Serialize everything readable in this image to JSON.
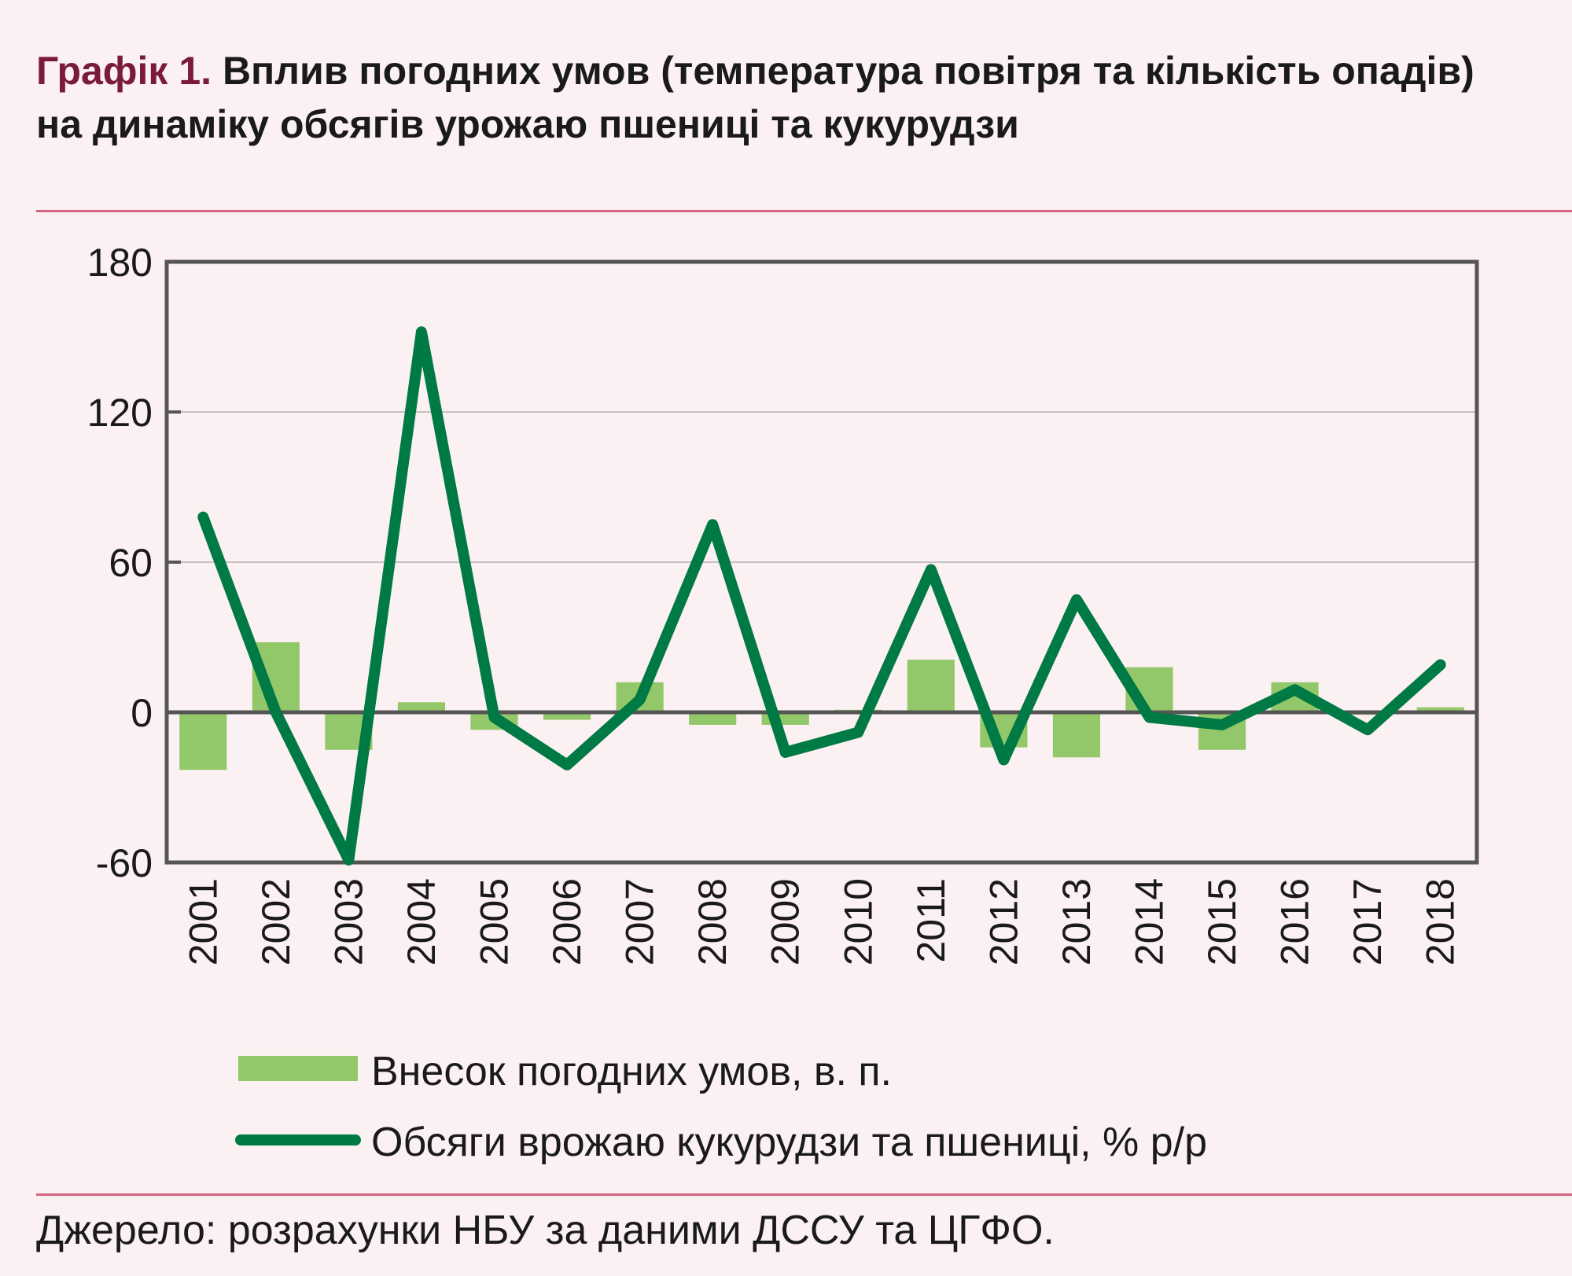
{
  "title": {
    "number": "Графік 1.",
    "text": "Вплив погодних умов (температура повітря та кількість опадів) на динаміку обсягів урожаю пшениці та кукурудзи"
  },
  "source": "Джерело: розрахунки НБУ за даними ДССУ та ЦГФО.",
  "colors": {
    "background": "#fbf0f2",
    "title_accent": "#7a1a3e",
    "rule": "#d4637f",
    "bars": "#92c869",
    "line": "#007a45",
    "axis": "#555555",
    "grid": "#c8c0c2"
  },
  "chart_data": {
    "type": "bar+line",
    "title": "",
    "xlabel": "",
    "ylabel": "",
    "ylim": [
      -60,
      180
    ],
    "yticks": [
      -60,
      0,
      60,
      120,
      180
    ],
    "grid": true,
    "legend_position": "bottom",
    "categories": [
      "2001",
      "2002",
      "2003",
      "2004",
      "2005",
      "2006",
      "2007",
      "2008",
      "2009",
      "2010",
      "2011",
      "2012",
      "2013",
      "2014",
      "2015",
      "2016",
      "2017",
      "2018"
    ],
    "series": [
      {
        "name": "Внесок погодних умов, в. п.",
        "type": "bar",
        "values": [
          -23,
          28,
          -15,
          4,
          -7,
          -3,
          12,
          -5,
          -5,
          1,
          21,
          -14,
          -18,
          18,
          -15,
          12,
          -1,
          2
        ]
      },
      {
        "name": "Обсяги врожаю кукурудзи та пшениці, % р/р",
        "type": "line",
        "values": [
          78,
          0,
          -59,
          152,
          -2,
          -21,
          5,
          75,
          -16,
          -8,
          57,
          -19,
          45,
          -2,
          -5,
          9,
          -7,
          19
        ]
      }
    ]
  }
}
